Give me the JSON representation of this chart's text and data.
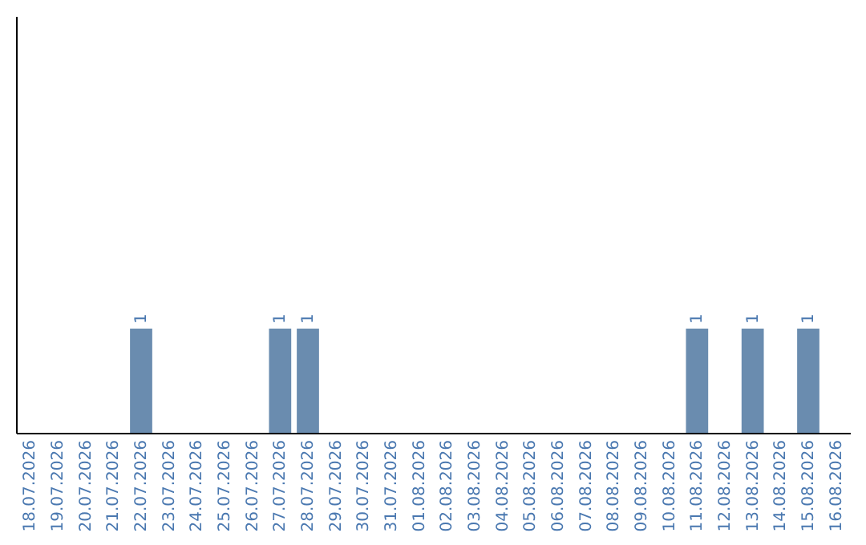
{
  "chart_data": {
    "type": "bar",
    "categories": [
      "18.07.2026",
      "19.07.2026",
      "20.07.2026",
      "21.07.2026",
      "22.07.2026",
      "23.07.2026",
      "24.07.2026",
      "25.07.2026",
      "26.07.2026",
      "27.07.2026",
      "28.07.2026",
      "29.07.2026",
      "30.07.2026",
      "31.07.2026",
      "01.08.2026",
      "02.08.2026",
      "03.08.2026",
      "04.08.2026",
      "05.08.2026",
      "06.08.2026",
      "07.08.2026",
      "08.08.2026",
      "09.08.2026",
      "10.08.2026",
      "11.08.2026",
      "12.08.2026",
      "13.08.2026",
      "14.08.2026",
      "15.08.2026",
      "16.08.2026"
    ],
    "values": [
      0,
      0,
      0,
      0,
      1,
      0,
      0,
      0,
      0,
      1,
      1,
      0,
      0,
      0,
      0,
      0,
      0,
      0,
      0,
      0,
      0,
      0,
      0,
      0,
      1,
      0,
      1,
      0,
      1,
      0
    ],
    "value_labels": [
      null,
      null,
      null,
      null,
      "1",
      null,
      null,
      null,
      null,
      "1",
      "1",
      null,
      null,
      null,
      null,
      null,
      null,
      null,
      null,
      null,
      null,
      null,
      null,
      null,
      "1",
      null,
      "1",
      null,
      "1",
      null
    ],
    "color": "#6a8caf",
    "ylim": [
      0,
      4
    ],
    "tick_labels": "x"
  }
}
